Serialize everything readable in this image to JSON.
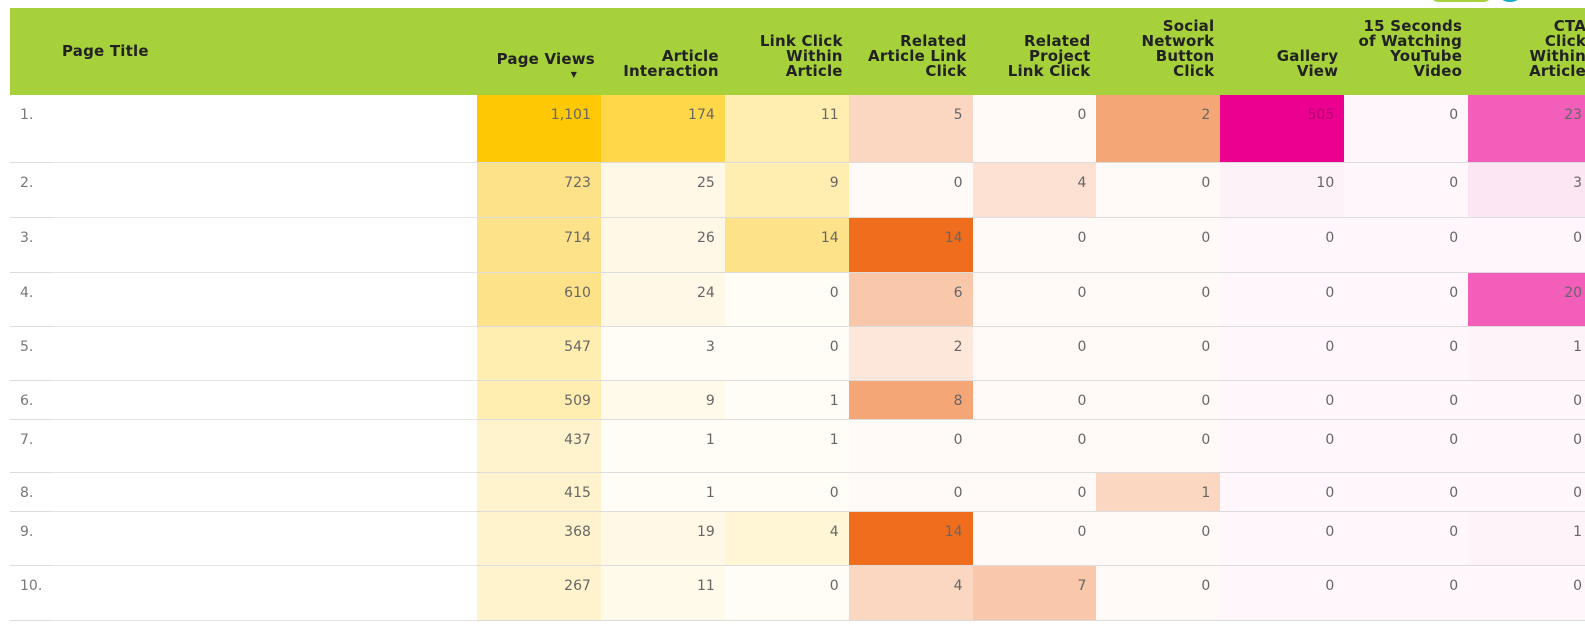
{
  "table": {
    "columns": {
      "page_title": "Page Title",
      "page_views": "Page Views",
      "article_interaction": [
        "Article",
        "Interaction"
      ],
      "link_click": [
        "Link Click",
        "Within",
        "Article"
      ],
      "related_article": [
        "Related",
        "Article Link",
        "Click"
      ],
      "related_project": [
        "Related",
        "Project",
        "Link Click"
      ],
      "social_network": [
        "Social",
        "Network",
        "Button",
        "Click"
      ],
      "gallery_view": [
        "Gallery",
        "View"
      ],
      "youtube": [
        "15 Seconds",
        "of Watching",
        "YouTube",
        "Video"
      ],
      "cta_click": [
        "CTA",
        "Click",
        "Within",
        "Article"
      ]
    },
    "sort_indicator": "▼",
    "rows": [
      {
        "index": "1.",
        "title": "",
        "values": [
          "1,101",
          "174",
          "11",
          "5",
          "0",
          "2",
          "505",
          "0",
          "23"
        ]
      },
      {
        "index": "2.",
        "title": "",
        "values": [
          "723",
          "25",
          "9",
          "0",
          "4",
          "0",
          "10",
          "0",
          "3"
        ]
      },
      {
        "index": "3.",
        "title": "",
        "values": [
          "714",
          "26",
          "14",
          "14",
          "0",
          "0",
          "0",
          "0",
          "0"
        ]
      },
      {
        "index": "4.",
        "title": "",
        "values": [
          "610",
          "24",
          "0",
          "6",
          "0",
          "0",
          "0",
          "0",
          "20"
        ]
      },
      {
        "index": "5.",
        "title": "",
        "values": [
          "547",
          "3",
          "0",
          "2",
          "0",
          "0",
          "0",
          "0",
          "1"
        ]
      },
      {
        "index": "6.",
        "title": "",
        "values": [
          "509",
          "9",
          "1",
          "8",
          "0",
          "0",
          "0",
          "0",
          "0"
        ]
      },
      {
        "index": "7.",
        "title": "",
        "values": [
          "437",
          "1",
          "1",
          "0",
          "0",
          "0",
          "0",
          "0",
          "0"
        ]
      },
      {
        "index": "8.",
        "title": "",
        "values": [
          "415",
          "1",
          "0",
          "0",
          "0",
          "1",
          "0",
          "0",
          "0"
        ]
      },
      {
        "index": "9.",
        "title": "",
        "values": [
          "368",
          "19",
          "4",
          "14",
          "0",
          "0",
          "0",
          "0",
          "1"
        ]
      },
      {
        "index": "10.",
        "title": "",
        "values": [
          "267",
          "11",
          "0",
          "4",
          "7",
          "0",
          "0",
          "0",
          "0"
        ]
      }
    ]
  },
  "colors": {
    "header_bg": "#a6d13b",
    "accent_teal": "#16a9c7",
    "yellow_scale": [
      "#fffdf6",
      "#fffae6",
      "#fff3cd",
      "#ffeeb0",
      "#fee28a",
      "#ffd84a",
      "#fec904"
    ],
    "orange_scale": [
      "#fffaf7",
      "#fde9de",
      "#fbd7c2",
      "#f9c8ab",
      "#f5a676",
      "#f06d1d"
    ],
    "pink_scale": [
      "#fff7fc",
      "#fde6f3",
      "#f45ebb",
      "#ec008f"
    ]
  },
  "cell_colors": [
    [
      "#fec904",
      "#ffd84a",
      "#ffeeb0",
      "#fbd7c2",
      "#fffaf7",
      "#f5a676",
      "#ec008f",
      "#fff7fc",
      "#f45ebb"
    ],
    [
      "#fee28a",
      "#fff8e6",
      "#ffeeb0",
      "#fffaf7",
      "#fde2d4",
      "#fffaf7",
      "#fdf2f8",
      "#fff7fc",
      "#fde6f3"
    ],
    [
      "#fee28a",
      "#fff8e6",
      "#fee28a",
      "#f06d1d",
      "#fffaf7",
      "#fffaf7",
      "#fff7fc",
      "#fff7fc",
      "#fff7fc"
    ],
    [
      "#fee28a",
      "#fff8e6",
      "#fffdf6",
      "#f9c8ab",
      "#fffaf7",
      "#fffaf7",
      "#fff7fc",
      "#fff7fc",
      "#f45ebb"
    ],
    [
      "#ffeeb0",
      "#fffdf6",
      "#fffdf6",
      "#fde6da",
      "#fffaf7",
      "#fffaf7",
      "#fff7fc",
      "#fff7fc",
      "#fff3fa"
    ],
    [
      "#ffeeb0",
      "#fffaea",
      "#fffdf6",
      "#f5a676",
      "#fffaf7",
      "#fffaf7",
      "#fff7fc",
      "#fff7fc",
      "#fff7fc"
    ],
    [
      "#fff3cd",
      "#fffdf6",
      "#fffdf6",
      "#fffaf7",
      "#fffaf7",
      "#fffaf7",
      "#fff7fc",
      "#fff7fc",
      "#fff7fc"
    ],
    [
      "#fff3cd",
      "#fffdf6",
      "#fffdf6",
      "#fffaf7",
      "#fffaf7",
      "#fbd7c2",
      "#fff7fc",
      "#fff7fc",
      "#fff7fc"
    ],
    [
      "#fff3cd",
      "#fff8e6",
      "#fff6d6",
      "#f06d1d",
      "#fffaf7",
      "#fffaf7",
      "#fff7fc",
      "#fff7fc",
      "#fff3fa"
    ],
    [
      "#fff3cd",
      "#fffaea",
      "#fffdf6",
      "#fbd7c2",
      "#f9c8ab",
      "#fffaf7",
      "#fff7fc",
      "#fff7fc",
      "#fff7fc"
    ]
  ],
  "row_heights": [
    68,
    55,
    55,
    54,
    54,
    39,
    53,
    39,
    54,
    55
  ]
}
